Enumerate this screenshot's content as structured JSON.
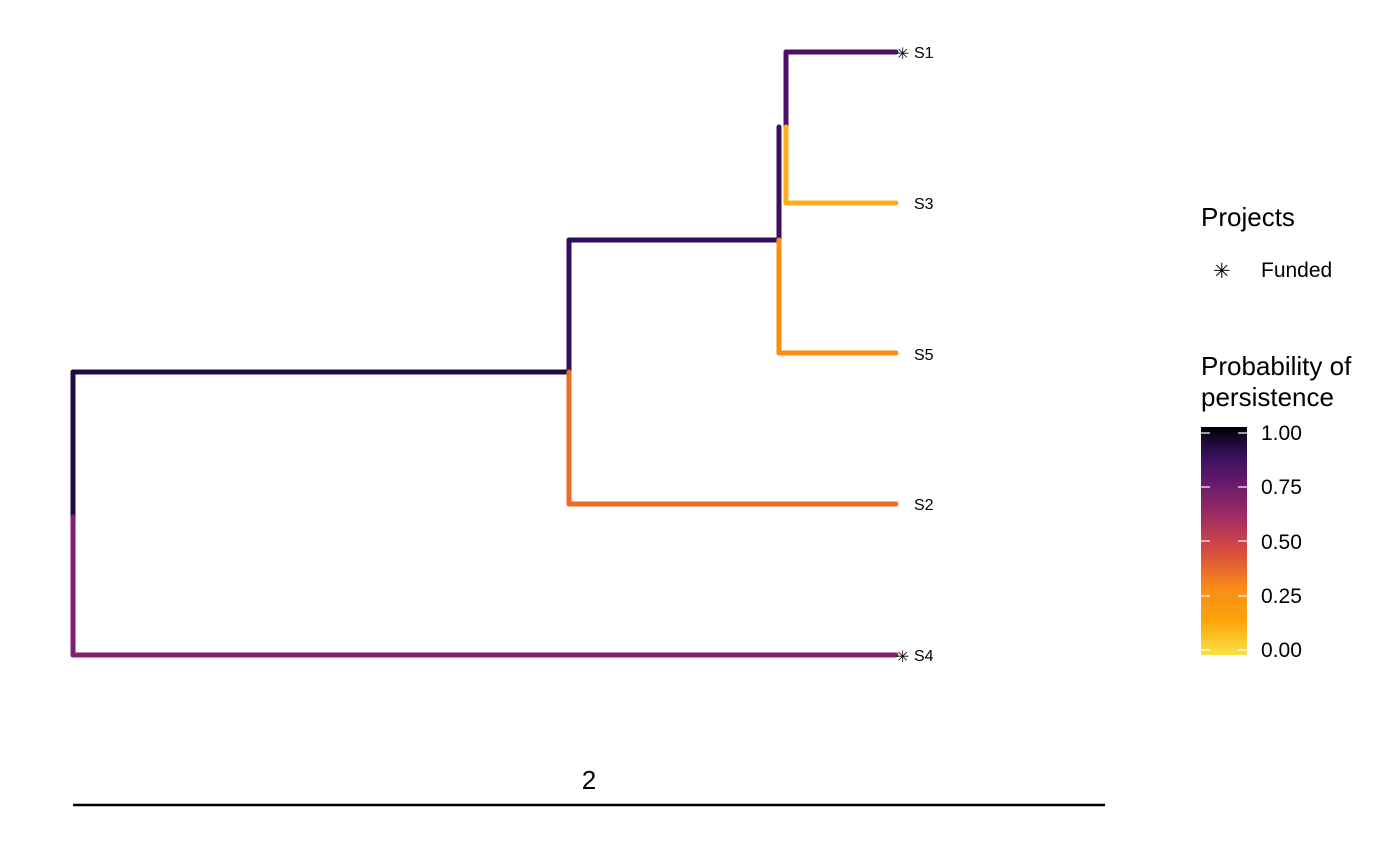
{
  "tree": {
    "tips": [
      {
        "name": "S1",
        "funded": true,
        "persistence": 0.8
      },
      {
        "name": "S3",
        "funded": false,
        "persistence": 0.1
      },
      {
        "name": "S5",
        "funded": false,
        "persistence": 0.18
      },
      {
        "name": "S2",
        "funded": false,
        "persistence": 0.28
      },
      {
        "name": "S4",
        "funded": true,
        "persistence": 0.6
      }
    ],
    "branches": [
      {
        "id": "root-to-inner",
        "persistence": 0.93
      },
      {
        "id": "root-to-S4",
        "persistence": 0.6
      },
      {
        "id": "inner-to-clade",
        "persistence": 0.88
      },
      {
        "id": "inner-to-S2",
        "persistence": 0.28
      },
      {
        "id": "clade-to-S1S3",
        "persistence": 0.85
      },
      {
        "id": "clade-to-S5",
        "persistence": 0.18
      },
      {
        "id": "S1S3-to-S1",
        "persistence": 0.8
      },
      {
        "id": "S1S3-to-S3",
        "persistence": 0.1
      }
    ],
    "funded_marker": "✳"
  },
  "scale_bar": {
    "label": "2",
    "length": 2
  },
  "legend": {
    "projects_title": "Projects",
    "funded_label": "Funded",
    "funded_icon": "asterisk-icon",
    "colorbar_title_line1": "Probability of",
    "colorbar_title_line2": "persistence",
    "ticks": [
      "1.00",
      "0.75",
      "0.50",
      "0.25",
      "0.00"
    ],
    "tick_values": [
      1.0,
      0.75,
      0.5,
      0.25,
      0.0
    ],
    "palette": [
      "#000004",
      "#1b0c41",
      "#4a0c6b",
      "#781c6d",
      "#a52c60",
      "#cf4446",
      "#ed6925",
      "#fb9b06",
      "#f7d13d",
      "#fcffa4"
    ]
  }
}
